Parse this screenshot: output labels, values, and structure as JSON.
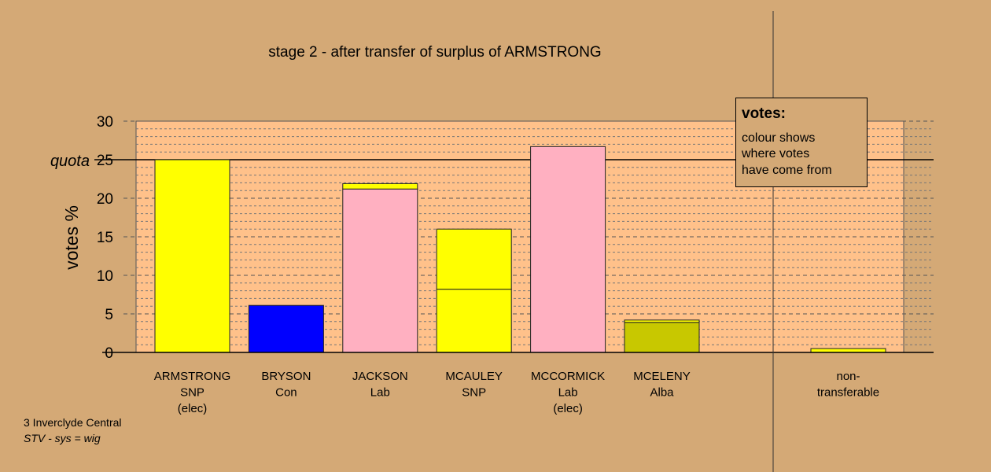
{
  "chart_data": {
    "type": "bar",
    "title": "stage 2 - after transfer of surplus of ARMSTRONG",
    "ylabel": "votes %",
    "ylim": [
      0,
      30
    ],
    "yticks": [
      "0",
      "5",
      "10",
      "15",
      "20",
      "25",
      "30"
    ],
    "quota": {
      "label": "quota",
      "value": 25
    },
    "categories": [
      {
        "name": "ARMSTRONG",
        "party": "SNP",
        "status": "(elec)"
      },
      {
        "name": "BRYSON",
        "party": "Con",
        "status": ""
      },
      {
        "name": "JACKSON",
        "party": "Lab",
        "status": ""
      },
      {
        "name": "MCAULEY",
        "party": "SNP",
        "status": ""
      },
      {
        "name": "MCCORMICK",
        "party": "Lab",
        "status": "(elec)"
      },
      {
        "name": "MCELENY",
        "party": "Alba",
        "status": ""
      }
    ],
    "nontransferable": {
      "line1": "non-",
      "line2": "transferable",
      "value": 0.5,
      "color": "#ffff00"
    },
    "bars": [
      {
        "segments": [
          {
            "value": 25.0,
            "color": "#ffff00"
          }
        ]
      },
      {
        "segments": [
          {
            "value": 6.1,
            "color": "#0000ff"
          }
        ]
      },
      {
        "segments": [
          {
            "value": 21.2,
            "color": "#ffb0c1"
          },
          {
            "value": 0.7,
            "color": "#ffff00"
          }
        ]
      },
      {
        "segments": [
          {
            "value": 8.2,
            "color": "#ffff00"
          },
          {
            "value": 7.8,
            "color": "#ffff00"
          }
        ]
      },
      {
        "segments": [
          {
            "value": 26.7,
            "color": "#ffb0c1"
          }
        ]
      },
      {
        "segments": [
          {
            "value": 3.9,
            "color": "#c8c800"
          },
          {
            "value": 0.3,
            "color": "#ffff00"
          }
        ]
      }
    ],
    "legend": {
      "title": "votes:",
      "lines": [
        "colour shows",
        "where votes",
        "have come from"
      ],
      "placement": "top-right"
    },
    "colors": {
      "background": "#d4a976",
      "plot_background": "#ffc18a"
    }
  },
  "footer": {
    "line1": "3 Inverclyde Central",
    "line2": "STV - sys = wig"
  }
}
